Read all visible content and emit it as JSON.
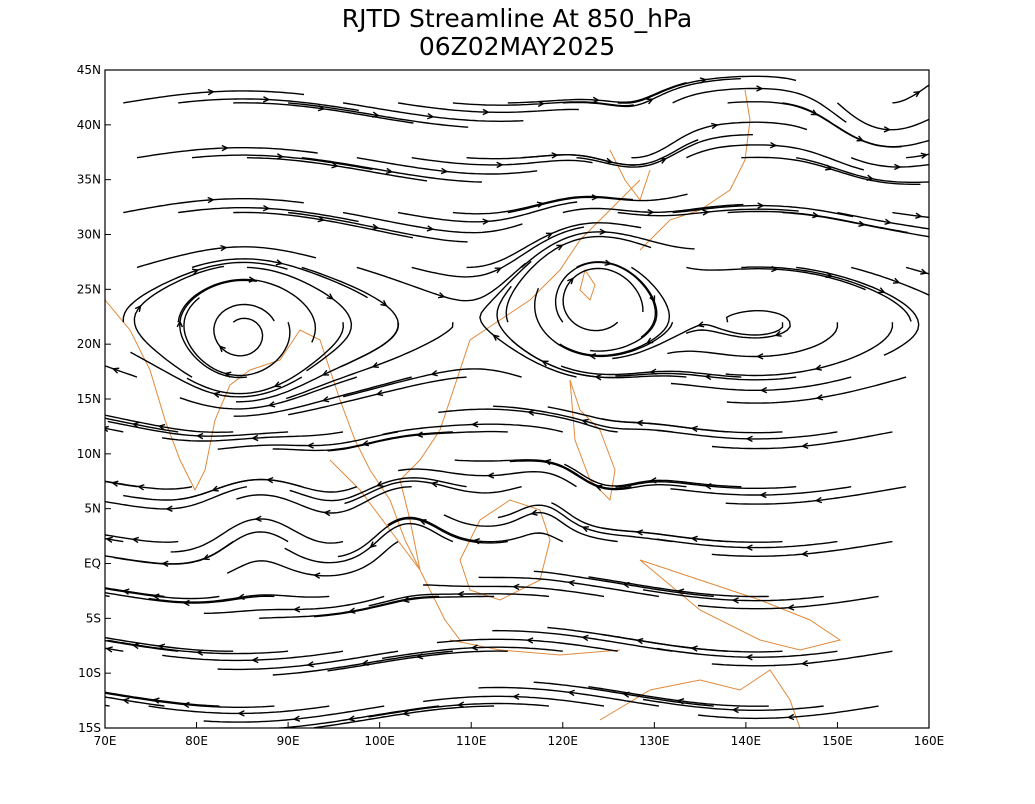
{
  "chart_data": {
    "type": "streamline",
    "title": "RJTD Streamline At 850_hPa",
    "subtitle": "06Z02MAY2025",
    "xlim": [
      70,
      160
    ],
    "ylim": [
      -15,
      45
    ],
    "xticks": [
      {
        "value": 70,
        "label": "70E"
      },
      {
        "value": 80,
        "label": "80E"
      },
      {
        "value": 90,
        "label": "90E"
      },
      {
        "value": 100,
        "label": "100E"
      },
      {
        "value": 110,
        "label": "110E"
      },
      {
        "value": 120,
        "label": "120E"
      },
      {
        "value": 130,
        "label": "130E"
      },
      {
        "value": 140,
        "label": "140E"
      },
      {
        "value": 150,
        "label": "150E"
      },
      {
        "value": 160,
        "label": "160E"
      }
    ],
    "yticks": [
      {
        "value": 45,
        "label": "45N"
      },
      {
        "value": 40,
        "label": "40N"
      },
      {
        "value": 35,
        "label": "35N"
      },
      {
        "value": 30,
        "label": "30N"
      },
      {
        "value": 25,
        "label": "25N"
      },
      {
        "value": 20,
        "label": "20N"
      },
      {
        "value": 15,
        "label": "15N"
      },
      {
        "value": 10,
        "label": "10N"
      },
      {
        "value": 5,
        "label": "5N"
      },
      {
        "value": 0,
        "label": "EQ"
      },
      {
        "value": -5,
        "label": "5S"
      },
      {
        "value": -10,
        "label": "10S"
      },
      {
        "value": -15,
        "label": "15S"
      }
    ]
  }
}
